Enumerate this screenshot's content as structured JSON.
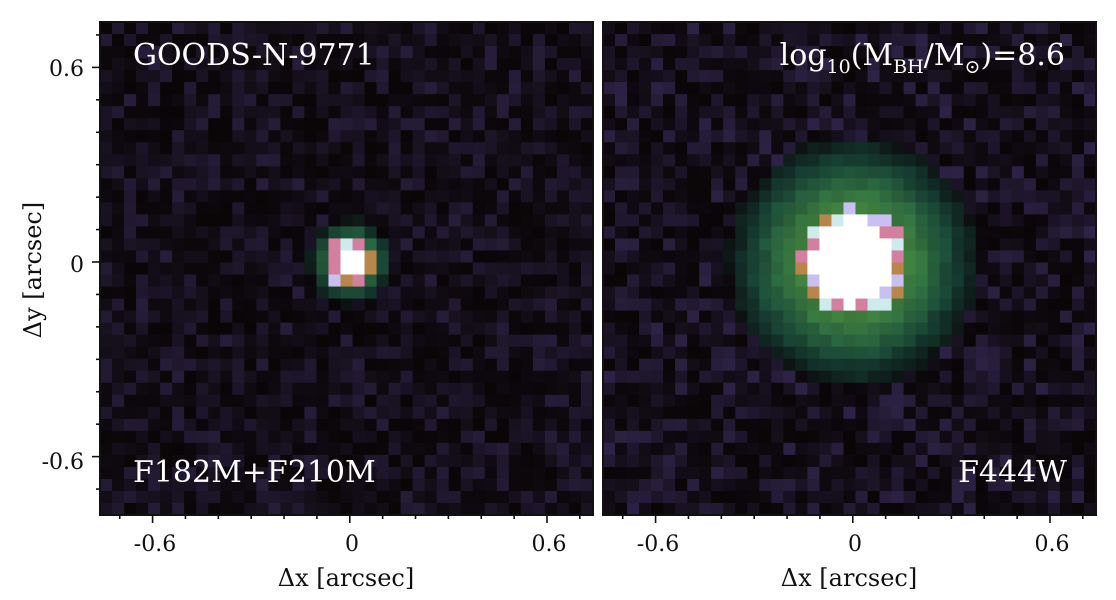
{
  "figure": {
    "panels": [
      {
        "name": "left",
        "top_left_label": "GOODS-N-9771",
        "bottom_left_label": "F182M+F210M",
        "core_radius_arcsec": 0.04,
        "halo_radius_arcsec": 0.13
      },
      {
        "name": "right",
        "top_right_label": {
          "prefix": "log",
          "sub1": "10",
          "mid1": "(M",
          "sub2": "BH",
          "mid2": "/M",
          "sub3": "⊙",
          "suffix": ")=8.6"
        },
        "bottom_right_label": "F444W",
        "core_radius_arcsec": 0.13,
        "halo_radius_arcsec": 0.38
      }
    ],
    "x_axis": {
      "title": "Δx [arcsec]",
      "ticks": [
        "-0.6",
        "0",
        "0.6"
      ],
      "range": [
        -0.76,
        0.74
      ]
    },
    "y_axis": {
      "title": "Δy [arcsec]",
      "ticks": [
        "0.6",
        "0",
        "-0.6"
      ],
      "range": [
        -0.78,
        0.74
      ]
    },
    "colors": {
      "background": "#0a0608",
      "noise": "#2a2040",
      "halo": "#1e6a55",
      "ring": "#4a8a3a",
      "core": "#ffffff",
      "core_edge_pink": "#d47fa0",
      "core_edge_lavender": "#c8c0f0"
    }
  }
}
